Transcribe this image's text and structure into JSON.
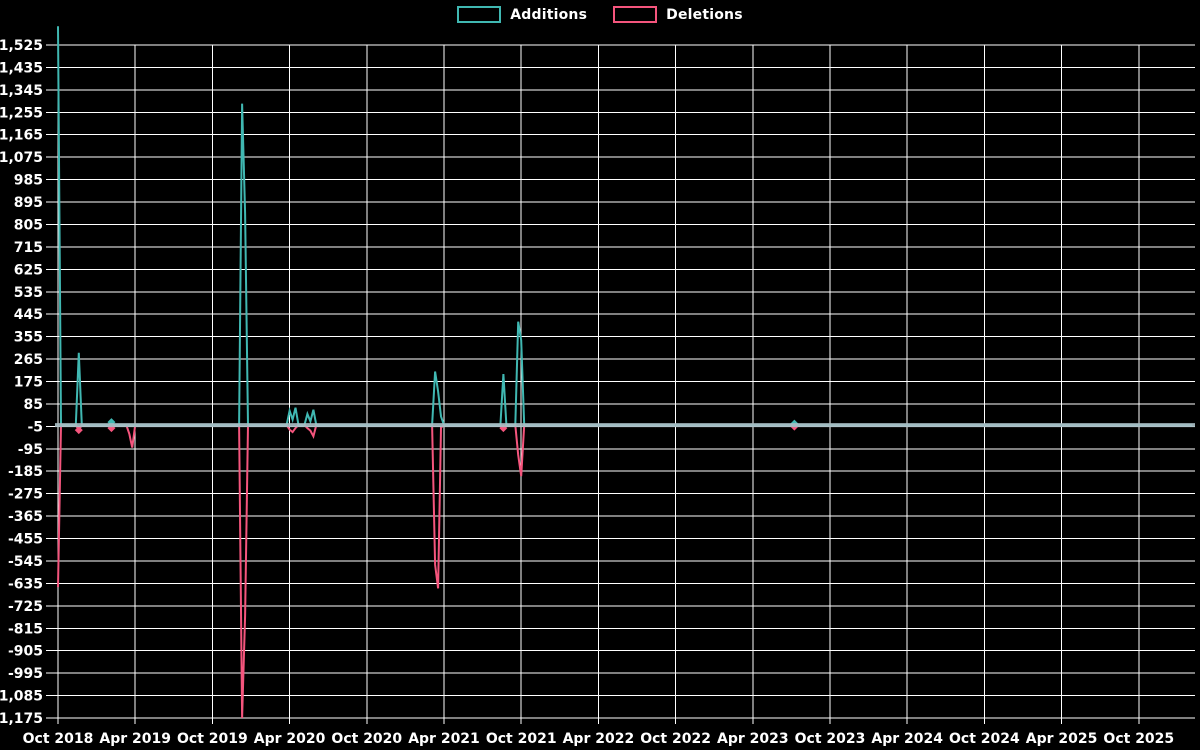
{
  "chart_data": {
    "type": "line",
    "title": "",
    "background": "#000000",
    "grid_color": "#ffffff",
    "text_color": "#ffffff",
    "zero_line_color": "#a9bec4",
    "legend": [
      {
        "label": "Additions",
        "color": "#40b8b2"
      },
      {
        "label": "Deletions",
        "color": "#f5557d"
      }
    ],
    "x_axis": {
      "tick_labels": [
        "Oct 2018",
        "Apr 2019",
        "Oct 2019",
        "Apr 2020",
        "Oct 2020",
        "Apr 2021",
        "Oct 2021",
        "Apr 2022",
        "Oct 2022",
        "Apr 2023",
        "Oct 2023",
        "Apr 2024",
        "Oct 2024",
        "Apr 2025",
        "Oct 2025"
      ],
      "weeks_per_tick": 26,
      "total_weeks": 383
    },
    "y_axis": {
      "min": -1175,
      "max": 1525,
      "step": 90,
      "tick_labels": [
        "1,525",
        "1,435",
        "1,345",
        "1,255",
        "1,165",
        "1,075",
        "985",
        "895",
        "805",
        "715",
        "625",
        "535",
        "445",
        "355",
        "265",
        "175",
        "85",
        "-5",
        "-95",
        "-185",
        "-275",
        "-365",
        "-455",
        "-545",
        "-635",
        "-725",
        "-815",
        "-905",
        "-995",
        "-1,085",
        "-1,175"
      ]
    },
    "series": [
      {
        "name": "Additions",
        "color": "#40b8b2",
        "default": 0,
        "points": [
          {
            "week": 0,
            "value": 1600
          },
          {
            "week": 7,
            "value": 290
          },
          {
            "week": 18,
            "value": 12,
            "marker": true
          },
          {
            "week": 62,
            "value": 1290
          },
          {
            "week": 63,
            "value": 850
          },
          {
            "week": 78,
            "value": 58
          },
          {
            "week": 79,
            "value": 22
          },
          {
            "week": 80,
            "value": 70
          },
          {
            "week": 84,
            "value": 45
          },
          {
            "week": 85,
            "value": 15
          },
          {
            "week": 86,
            "value": 62
          },
          {
            "week": 127,
            "value": 215
          },
          {
            "week": 128,
            "value": 135
          },
          {
            "week": 129,
            "value": 35
          },
          {
            "week": 150,
            "value": 205
          },
          {
            "week": 155,
            "value": 415
          },
          {
            "week": 156,
            "value": 340
          },
          {
            "week": 248,
            "value": 6,
            "marker": true
          }
        ]
      },
      {
        "name": "Deletions",
        "color": "#f5557d",
        "default": 0,
        "points": [
          {
            "week": 0,
            "value": -650
          },
          {
            "week": 7,
            "value": -20,
            "marker": true
          },
          {
            "week": 18,
            "value": -12,
            "marker": true
          },
          {
            "week": 24,
            "value": -35
          },
          {
            "week": 25,
            "value": -90
          },
          {
            "week": 62,
            "value": -1175
          },
          {
            "week": 63,
            "value": -765
          },
          {
            "week": 78,
            "value": -18
          },
          {
            "week": 79,
            "value": -28
          },
          {
            "week": 80,
            "value": -12
          },
          {
            "week": 84,
            "value": -12
          },
          {
            "week": 85,
            "value": -22
          },
          {
            "week": 86,
            "value": -45
          },
          {
            "week": 127,
            "value": -560
          },
          {
            "week": 128,
            "value": -655
          },
          {
            "week": 129,
            "value": -10
          },
          {
            "week": 150,
            "value": -12,
            "marker": true
          },
          {
            "week": 155,
            "value": -120
          },
          {
            "week": 156,
            "value": -205
          },
          {
            "week": 248,
            "value": -6,
            "marker": true
          }
        ]
      }
    ]
  }
}
